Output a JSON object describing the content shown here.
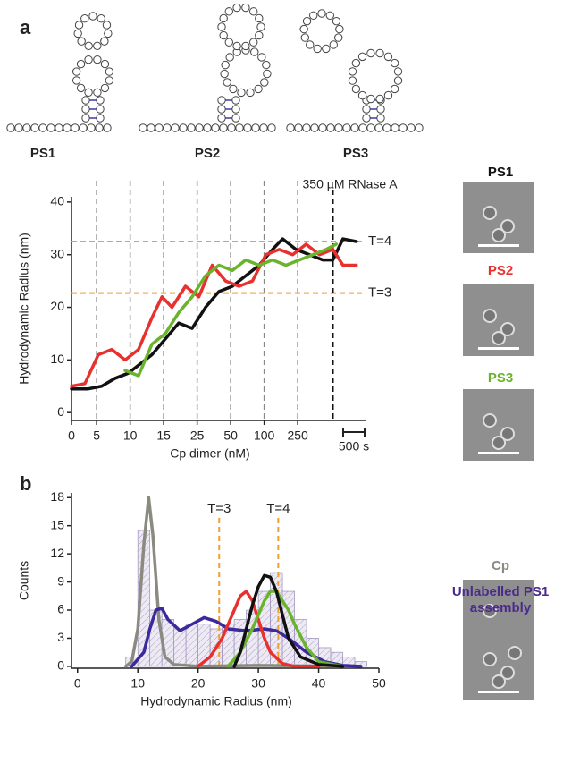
{
  "panels": [
    "a",
    "b"
  ],
  "structures": [
    {
      "label": "PS1",
      "color": "#111111"
    },
    {
      "label": "PS2",
      "color": "#e8312f"
    },
    {
      "label": "PS3",
      "color": "#6ab42d"
    }
  ],
  "micrographs": [
    {
      "label": "PS1",
      "color": "#111111"
    },
    {
      "label": "PS2",
      "color": "#e8312f"
    },
    {
      "label": "PS3",
      "color": "#6ab42d"
    },
    {
      "label": "Cp",
      "color": "#8a8a80"
    },
    {
      "label": "Unlabelled PS1 assembly",
      "color": "#4b2a8c"
    }
  ],
  "chart_data": [
    {
      "type": "line",
      "y_label": "Hydrodynamic Radius (nm)",
      "x_label": "Cp dimer (nM)",
      "xlim": [
        0,
        8.8
      ],
      "ylim": [
        -1.5,
        41
      ],
      "xticks": [
        0,
        {
          "value": 0.75,
          "label": "5"
        },
        {
          "value": 1.75,
          "label": "10"
        },
        {
          "value": 2.75,
          "label": "15"
        },
        {
          "value": 3.75,
          "label": "25"
        },
        {
          "value": 4.75,
          "label": "50"
        },
        {
          "value": 5.75,
          "label": "100"
        },
        {
          "value": 6.75,
          "label": "250"
        }
      ],
      "yticks": [
        0,
        10,
        20,
        30,
        40
      ],
      "xgrid": true,
      "hlines": [
        {
          "value": 32.5,
          "label": "T=4",
          "color": "#f0a030"
        },
        {
          "value": 22.7,
          "label": "T=3",
          "color": "#f0a030"
        }
      ],
      "vline": {
        "value": 7.8,
        "label": "350 µM RNase A",
        "color": "#111111"
      },
      "scale_bar_label": "500 s",
      "series": [
        {
          "name": "PS1",
          "color": "#111111",
          "x": [
            0,
            0.5,
            0.9,
            1.3,
            1.7,
            2.0,
            2.4,
            2.8,
            3.2,
            3.6,
            4.0,
            4.4,
            4.8,
            5.2,
            5.6,
            6.0,
            6.3,
            6.7,
            7.1,
            7.5,
            7.8,
            8.1,
            8.5
          ],
          "values": [
            4.5,
            4.5,
            5,
            6.5,
            7.5,
            9,
            11,
            14,
            17,
            16,
            20,
            23,
            24,
            26,
            28,
            31,
            33,
            31,
            30,
            29,
            29,
            33,
            32.5
          ]
        },
        {
          "name": "PS2",
          "color": "#e8312f",
          "x": [
            0,
            0.4,
            0.8,
            1.2,
            1.6,
            2.0,
            2.4,
            2.7,
            3.0,
            3.4,
            3.8,
            4.2,
            4.6,
            5.0,
            5.4,
            5.8,
            6.2,
            6.6,
            7.0,
            7.4,
            7.8,
            8.1,
            8.5
          ],
          "values": [
            5,
            5.5,
            11,
            12,
            10,
            12,
            18,
            22,
            20,
            24,
            22,
            28,
            25,
            24,
            25,
            30,
            31,
            30,
            32,
            30,
            31,
            28,
            28
          ]
        },
        {
          "name": "PS3",
          "color": "#6ab42d",
          "x": [
            1.6,
            2.0,
            2.4,
            2.8,
            3.2,
            3.6,
            4.0,
            4.4,
            4.8,
            5.2,
            5.6,
            6.0,
            6.4,
            6.8,
            7.2,
            7.6,
            7.9
          ],
          "values": [
            8,
            7,
            13,
            15,
            19,
            22,
            26,
            28,
            27,
            29,
            28,
            29,
            28,
            29,
            30,
            31,
            32
          ]
        }
      ]
    },
    {
      "type": "histogram",
      "y_label": "Counts",
      "x_label": "Hydrodynamic Radius (nm)",
      "xlim": [
        -1,
        50
      ],
      "ylim": [
        -0.2,
        18.5
      ],
      "xticks": [
        0,
        10,
        20,
        30,
        40,
        50
      ],
      "yticks": [
        0,
        3,
        6,
        9,
        12,
        15,
        18
      ],
      "bins": [
        8,
        10,
        12,
        14,
        16,
        18,
        20,
        22,
        24,
        26,
        28,
        30,
        32,
        34,
        36,
        38,
        40,
        42,
        44,
        46,
        48
      ],
      "counts": [
        1,
        14.5,
        6,
        5,
        4,
        4.5,
        4.5,
        4,
        4.5,
        5,
        6,
        8,
        10,
        8,
        5,
        3,
        2,
        1.5,
        1,
        0.5
      ],
      "hist_color": "#9a8fb8",
      "vlines": [
        {
          "value": 23.5,
          "label": "T=3",
          "color": "#f0a030"
        },
        {
          "value": 33.3,
          "label": "T=4",
          "color": "#f0a030"
        }
      ],
      "series": [
        {
          "name": "Cp",
          "color": "#8a8a80",
          "x": [
            8,
            9,
            10,
            11,
            11.8,
            12.5,
            13.5,
            14.5,
            16,
            20,
            30,
            45
          ],
          "values": [
            0,
            0.5,
            4,
            13,
            18,
            14,
            5,
            1,
            0.2,
            0,
            0.1,
            0
          ]
        },
        {
          "name": "Unlabelled PS1 assembly",
          "color": "#3a2a9c",
          "x": [
            9,
            11,
            12,
            13,
            14,
            15,
            17,
            19,
            21,
            23,
            25,
            28,
            31,
            33,
            35,
            38,
            41,
            44,
            47
          ],
          "values": [
            0,
            1.5,
            4,
            6,
            6.2,
            5,
            3.8,
            4.5,
            5.2,
            4.8,
            4,
            3.8,
            4,
            3.8,
            3,
            1.5,
            0.5,
            0.1,
            0
          ]
        },
        {
          "name": "PS2",
          "color": "#e8312f",
          "x": [
            20,
            22,
            24,
            26,
            27,
            28,
            29,
            30,
            31,
            32,
            34,
            36,
            40
          ],
          "values": [
            0,
            1,
            3,
            6,
            7.5,
            8,
            7,
            5,
            3,
            1.5,
            0.3,
            0,
            0
          ]
        },
        {
          "name": "PS3",
          "color": "#6ab42d",
          "x": [
            25,
            27,
            29,
            30,
            31,
            32,
            33,
            34,
            35,
            36,
            38,
            40,
            44
          ],
          "values": [
            0,
            1.5,
            4,
            5.5,
            7,
            8,
            8,
            7,
            6,
            4.5,
            2,
            0.5,
            0
          ]
        },
        {
          "name": "PS1",
          "color": "#111111",
          "x": [
            26,
            27,
            28,
            29,
            30,
            31,
            32,
            33,
            34,
            35,
            37,
            40,
            44
          ],
          "values": [
            0,
            1.5,
            4,
            6.5,
            8.5,
            9.7,
            9.5,
            8,
            5.5,
            3,
            1,
            0.2,
            0
          ]
        }
      ]
    }
  ]
}
